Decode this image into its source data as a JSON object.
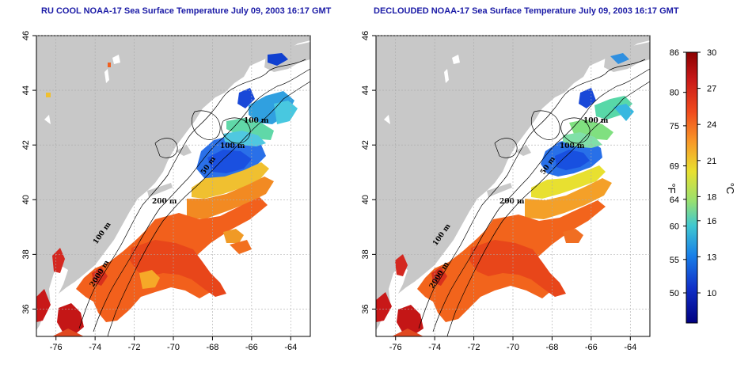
{
  "maps": [
    {
      "title": "RU COOL NOAA-17 Sea Surface Temperature July 09, 2003 16:17 GMT",
      "x_ticks": [
        "-76",
        "-74",
        "-72",
        "-70",
        "-68",
        "-66",
        "-64"
      ],
      "y_ticks": [
        "36",
        "38",
        "40",
        "42",
        "44",
        "46"
      ],
      "contour_labels": [
        "100 m",
        "100 m",
        "200 m",
        "50 m",
        "100 m",
        "2000 m"
      ]
    },
    {
      "title": "DECLOUDED NOAA-17 Sea Surface Temperature July 09, 2003 16:17 GMT",
      "x_ticks": [
        "-76",
        "-74",
        "-72",
        "-70",
        "-68",
        "-66",
        "-64"
      ],
      "y_ticks": [
        "36",
        "38",
        "40",
        "42",
        "44",
        "46"
      ],
      "contour_labels": [
        "100 m",
        "100 m",
        "200 m",
        "50 m",
        "100 m",
        "2000 m"
      ]
    }
  ],
  "colorbar": {
    "fahrenheit_ticks": [
      "86",
      "80",
      "75",
      "69",
      "64",
      "60",
      "55",
      "50"
    ],
    "celsius_ticks": [
      "30",
      "27",
      "24",
      "21",
      "18",
      "16",
      "13",
      "10"
    ],
    "fahrenheit_unit": "°F",
    "celsius_unit": "°C",
    "colors": [
      "#8b0000",
      "#d42020",
      "#f25a1c",
      "#f8b030",
      "#e8e830",
      "#a0e060",
      "#40c8c8",
      "#2080e0",
      "#1030c0",
      "#000080"
    ]
  },
  "colors": {
    "land": "#c8c8c8",
    "water_bg": "#ffffff",
    "title": "#1a1aa6"
  }
}
